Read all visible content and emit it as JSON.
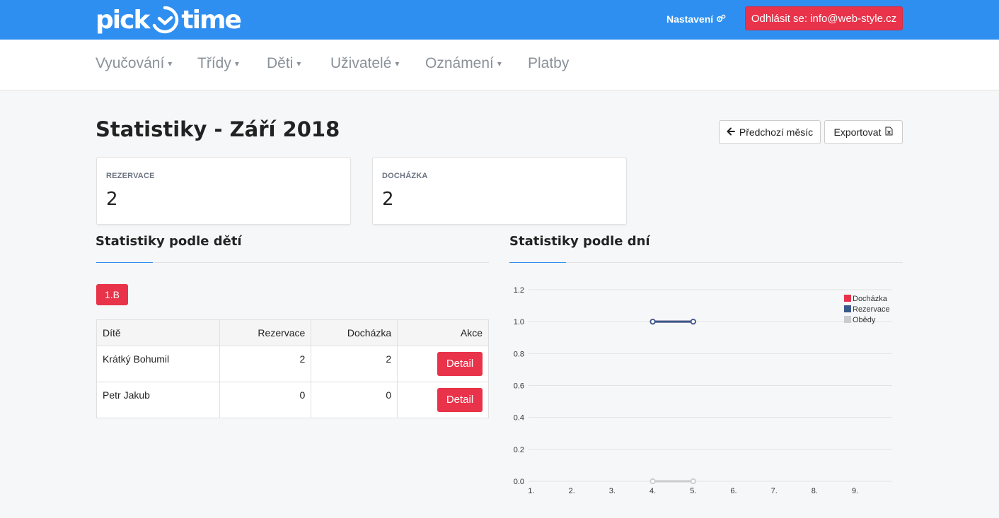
{
  "header": {
    "logo": {
      "left": "pick",
      "right": "time"
    },
    "settings_label": "Nastavení",
    "logout_label": "Odhlásit se: info@web-style.cz"
  },
  "nav": {
    "items": [
      {
        "label": "Vyučování",
        "caret": true
      },
      {
        "label": "Třídy",
        "caret": true
      },
      {
        "label": "Děti",
        "caret": true
      },
      {
        "label": "Uživatelé",
        "caret": true
      },
      {
        "label": "Oznámení",
        "caret": true
      },
      {
        "label": "Platby",
        "caret": false
      }
    ]
  },
  "page": {
    "title": "Statistiky - Září 2018",
    "prev_month_label": "Předchozí měsíc",
    "export_label": "Exportovat"
  },
  "stats": [
    {
      "label": "REZERVACE",
      "value": "2"
    },
    {
      "label": "DOCHÁZKA",
      "value": "2"
    }
  ],
  "by_children": {
    "title": "Statistiky podle dětí",
    "class_button": "1.B",
    "columns": [
      "Dítě",
      "Rezervace",
      "Docházka",
      "Akce"
    ],
    "rows": [
      {
        "name": "Krátký Bohumil",
        "reservations": "2",
        "attendance": "2",
        "action": "Detail"
      },
      {
        "name": "Petr Jakub",
        "reservations": "0",
        "attendance": "0",
        "action": "Detail"
      }
    ]
  },
  "by_days": {
    "title": "Statistiky podle dní"
  },
  "colors": {
    "brand": "#2f8ff0",
    "danger": "#e8334a",
    "series_attendance": "#e8334a",
    "series_reservations": "#3a5a8c",
    "series_lunches": "#c9cccf"
  },
  "chart_data": {
    "type": "line",
    "x": [
      "1.",
      "2.",
      "3.",
      "4.",
      "5.",
      "6.",
      "7.",
      "8.",
      "9."
    ],
    "y_ticks": [
      "0.0",
      "0.2",
      "0.4",
      "0.6",
      "0.8",
      "1.0",
      "1.2"
    ],
    "ylim": [
      0,
      1.2
    ],
    "grid": true,
    "legend": "top-right",
    "series": [
      {
        "name": "Docházka",
        "color": "#e8334a",
        "points": [
          {
            "x": "4.",
            "y": 1.0
          },
          {
            "x": "5.",
            "y": 1.0
          }
        ]
      },
      {
        "name": "Rezervace",
        "color": "#3a5a8c",
        "points": [
          {
            "x": "4.",
            "y": 1.0
          },
          {
            "x": "5.",
            "y": 1.0
          }
        ]
      },
      {
        "name": "Obědy",
        "color": "#c9cccf",
        "points": [
          {
            "x": "4.",
            "y": 0.0
          },
          {
            "x": "5.",
            "y": 0.0
          }
        ]
      }
    ]
  }
}
